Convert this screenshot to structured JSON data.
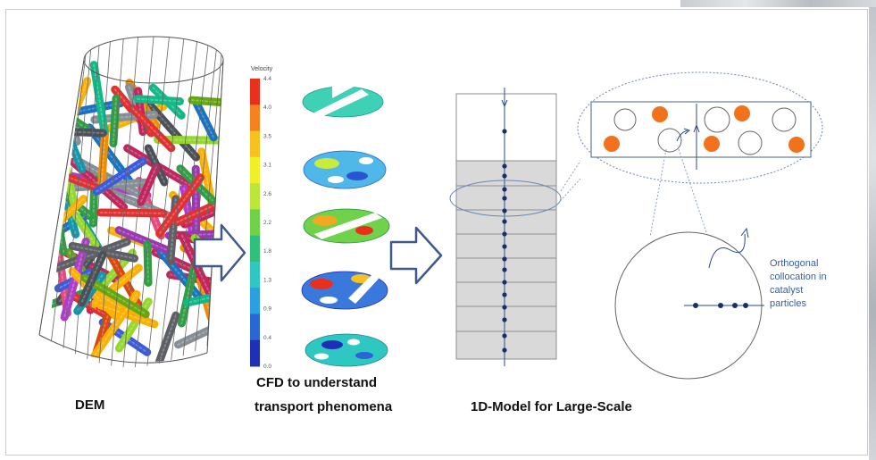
{
  "captions": {
    "dem": "DEM",
    "cfd_line1": "CFD to understand",
    "cfd_line2": "transport phenomena",
    "model_1d": "1D-Model for Large-Scale"
  },
  "colorbar": {
    "title": "Velocity",
    "ticks": [
      "4.4",
      "4.0",
      "3.5",
      "3.1",
      "2.6",
      "2.2",
      "1.8",
      "1.3",
      "0.9",
      "0.4",
      "0.0"
    ],
    "colors": [
      "#e8301c",
      "#f5821f",
      "#f5c21f",
      "#eef02a",
      "#bde63a",
      "#6fd24a",
      "#2fc07a",
      "#2ec7c2",
      "#2aa0e0",
      "#2a66d6",
      "#1f2fb8"
    ]
  },
  "annotation": {
    "line1": "Orthogonal",
    "line2": "collocation in",
    "line3": "catalyst",
    "line4": "particles"
  },
  "colors": {
    "arrow_outline": "#3d5a8a",
    "node_dot": "#1a2f66",
    "particle_orange": "#f2711c",
    "caption_text": "#111111",
    "annotation_text": "#3b5fa0"
  }
}
